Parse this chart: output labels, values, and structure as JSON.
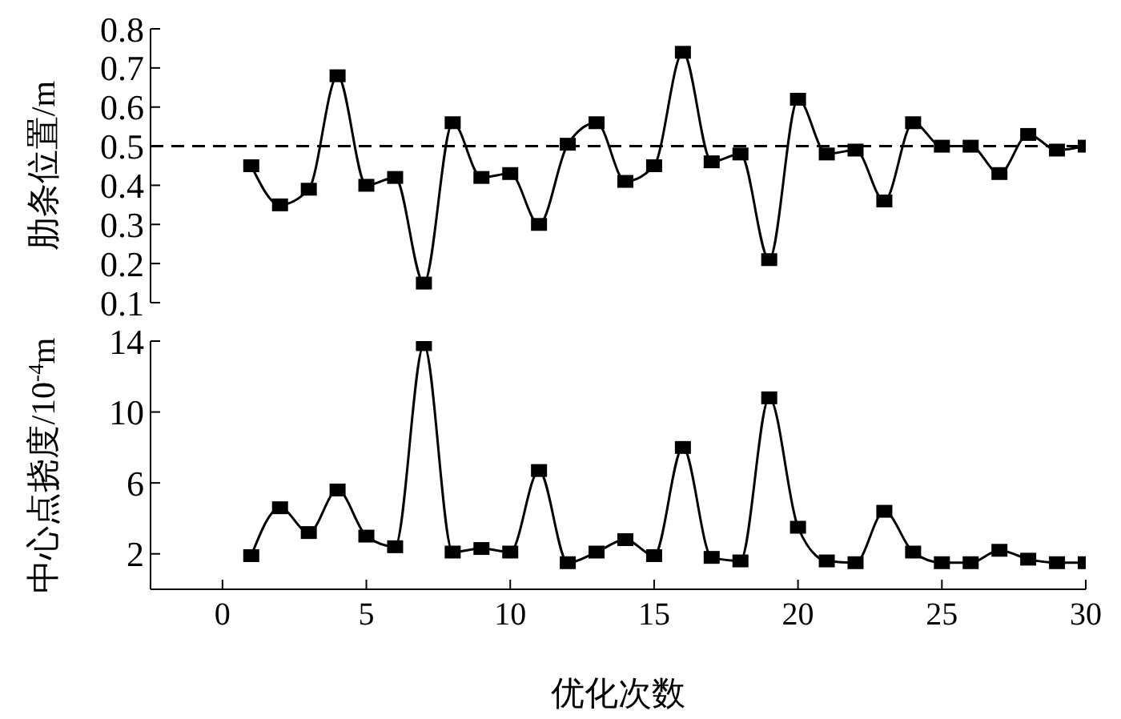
{
  "chart_data": [
    {
      "type": "line",
      "ylabel": "肋条位置/m",
      "x": [
        1,
        2,
        3,
        4,
        5,
        6,
        7,
        8,
        9,
        10,
        11,
        12,
        13,
        14,
        15,
        16,
        17,
        18,
        19,
        20,
        21,
        22,
        23,
        24,
        25,
        26,
        27,
        28,
        29,
        30
      ],
      "series": [
        {
          "color": "#000000",
          "values": [
            0.45,
            0.35,
            0.39,
            0.68,
            0.4,
            0.42,
            0.15,
            0.56,
            0.42,
            0.43,
            0.3,
            0.505,
            0.56,
            0.41,
            0.45,
            0.74,
            0.46,
            0.48,
            0.21,
            0.62,
            0.48,
            0.49,
            0.36,
            0.56,
            0.5,
            0.5,
            0.43,
            0.53,
            0.49,
            0.5
          ]
        }
      ],
      "xlim": [
        -2.5,
        30
      ],
      "ylim": [
        0.1,
        0.8
      ],
      "yticks": [
        0.1,
        0.2,
        0.3,
        0.4,
        0.5,
        0.6,
        0.7,
        0.8
      ],
      "tick_labels": "y",
      "marker": "square",
      "line_style": "solid",
      "ref_lines": [
        {
          "axis": "y",
          "value": 0.5,
          "color": "#000000",
          "line_style": "dashed"
        }
      ]
    },
    {
      "type": "line",
      "xlabel": "优化次数",
      "ylabel": "中心点挠度/10$^{-4}$m",
      "x": [
        1,
        2,
        3,
        4,
        5,
        6,
        7,
        8,
        9,
        10,
        11,
        12,
        13,
        14,
        15,
        16,
        17,
        18,
        19,
        20,
        21,
        22,
        23,
        24,
        25,
        26,
        27,
        28,
        29,
        30
      ],
      "series": [
        {
          "color": "#000000",
          "values": [
            1.9,
            4.6,
            3.2,
            5.6,
            3.0,
            2.4,
            13.8,
            2.1,
            2.3,
            2.1,
            6.7,
            1.5,
            2.1,
            2.8,
            1.9,
            8.0,
            1.8,
            1.6,
            10.8,
            3.5,
            1.6,
            1.5,
            4.4,
            2.1,
            1.5,
            1.5,
            2.2,
            1.7,
            1.5,
            1.5
          ]
        }
      ],
      "xlim": [
        -2.5,
        30
      ],
      "xticks": [
        0,
        5,
        10,
        15,
        20,
        25,
        30
      ],
      "ylim": [
        0,
        14
      ],
      "yticks": [
        2,
        6,
        10,
        14
      ],
      "marker": "square",
      "line_style": "solid"
    }
  ]
}
